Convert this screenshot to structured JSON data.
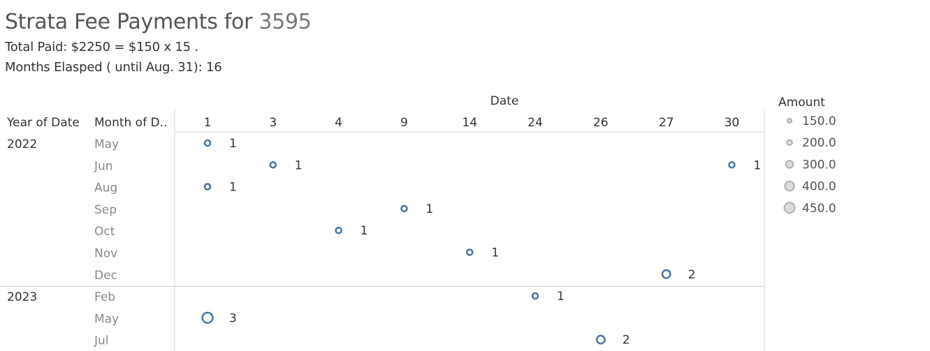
{
  "header": {
    "title_prefix": "Strata Fee Payments for",
    "title_id": "3595",
    "total_line": "Total Paid:  $2250  =  $150 x 15 .",
    "months_line": "Months Elasped ( until Aug. 31): 16"
  },
  "colors": {
    "mark": "#4e79a7",
    "legend_mark": "#b0b0b0",
    "grid": "#d4d4d4"
  },
  "chart_data": {
    "type": "scatter",
    "x_title": "Date",
    "row_headers": [
      "Year of Date",
      "Month of D.."
    ],
    "x_ticks": [
      "1",
      "3",
      "4",
      "9",
      "14",
      "24",
      "26",
      "27",
      "30"
    ],
    "rows": [
      {
        "year": "2022",
        "month": "May"
      },
      {
        "year": "",
        "month": "Jun"
      },
      {
        "year": "",
        "month": "Aug"
      },
      {
        "year": "",
        "month": "Sep"
      },
      {
        "year": "",
        "month": "Oct"
      },
      {
        "year": "",
        "month": "Nov"
      },
      {
        "year": "",
        "month": "Dec"
      },
      {
        "year": "2023",
        "month": "Feb"
      },
      {
        "year": "",
        "month": "May"
      },
      {
        "year": "",
        "month": "Jul"
      }
    ],
    "points": [
      {
        "year": "2022",
        "month": "May",
        "day": "1",
        "count": 1,
        "amount": 150
      },
      {
        "year": "2022",
        "month": "Jun",
        "day": "3",
        "count": 1,
        "amount": 150
      },
      {
        "year": "2022",
        "month": "Jun",
        "day": "30",
        "count": 1,
        "amount": 150
      },
      {
        "year": "2022",
        "month": "Aug",
        "day": "1",
        "count": 1,
        "amount": 150
      },
      {
        "year": "2022",
        "month": "Sep",
        "day": "9",
        "count": 1,
        "amount": 150
      },
      {
        "year": "2022",
        "month": "Oct",
        "day": "4",
        "count": 1,
        "amount": 150
      },
      {
        "year": "2022",
        "month": "Nov",
        "day": "14",
        "count": 1,
        "amount": 150
      },
      {
        "year": "2022",
        "month": "Dec",
        "day": "27",
        "count": 2,
        "amount": 300
      },
      {
        "year": "2023",
        "month": "Feb",
        "day": "24",
        "count": 1,
        "amount": 150
      },
      {
        "year": "2023",
        "month": "May",
        "day": "1",
        "count": 3,
        "amount": 450
      },
      {
        "year": "2023",
        "month": "Jul",
        "day": "26",
        "count": 2,
        "amount": 300
      }
    ],
    "legend": {
      "title": "Amount",
      "position": "right",
      "items": [
        "150.0",
        "200.0",
        "300.0",
        "400.0",
        "450.0"
      ],
      "values": [
        150,
        200,
        300,
        400,
        450
      ]
    },
    "grid": false
  }
}
